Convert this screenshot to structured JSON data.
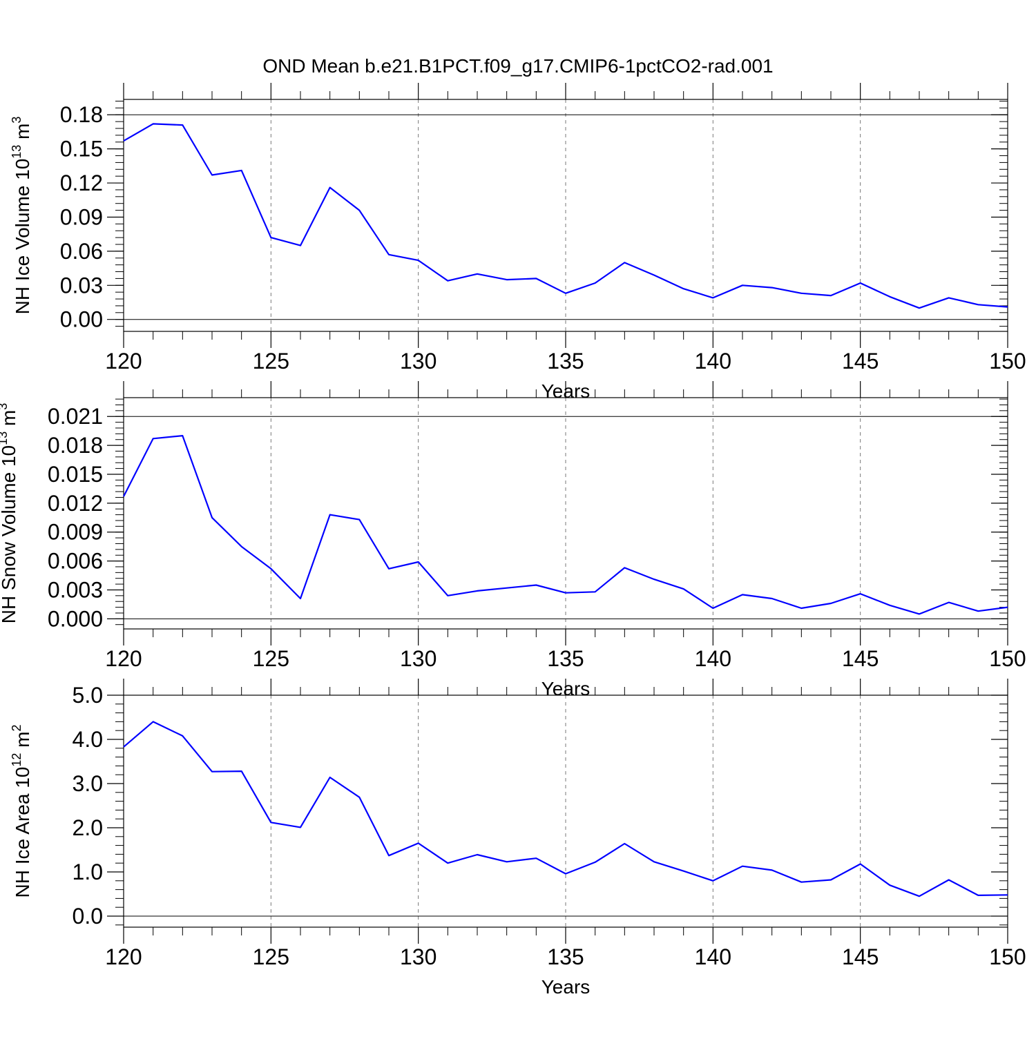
{
  "figure": {
    "title": "OND Mean b.e21.B1PCT.f09_g17.CMIP6-1pctCO2-rad.001",
    "line_color": "#0000ff"
  },
  "chart_data": [
    {
      "type": "line",
      "id": "ice-volume",
      "ylabel": "NH Ice Volume 10",
      "ylabel_exp": "13",
      "ylabel_unit": " m",
      "ylabel_unit_exp": "3",
      "xlabel": "Years",
      "xlim": [
        120,
        150
      ],
      "ylim": [
        -0.0105,
        0.1935
      ],
      "x_ticks": [
        120,
        125,
        130,
        135,
        140,
        145,
        150
      ],
      "x_tick_labels": [
        "120",
        "125",
        "130",
        "135",
        "140",
        "145",
        "150"
      ],
      "y_ticks": [
        0,
        0.03,
        0.06,
        0.09,
        0.12,
        0.15,
        0.18
      ],
      "y_tick_labels": [
        "0.00",
        "0.03",
        "0.06",
        "0.09",
        "0.12",
        "0.15",
        "0.18"
      ],
      "y_minor_step": 0.006,
      "x": [
        120,
        121,
        122,
        123,
        124,
        125,
        126,
        127,
        128,
        129,
        130,
        131,
        132,
        133,
        134,
        135,
        136,
        137,
        138,
        139,
        140,
        141,
        142,
        143,
        144,
        145,
        146,
        147,
        148,
        149,
        150
      ],
      "values": [
        0.157,
        0.172,
        0.171,
        0.127,
        0.131,
        0.072,
        0.065,
        0.116,
        0.096,
        0.057,
        0.052,
        0.034,
        0.04,
        0.035,
        0.036,
        0.023,
        0.032,
        0.05,
        0.039,
        0.027,
        0.019,
        0.03,
        0.028,
        0.023,
        0.021,
        0.032,
        0.02,
        0.01,
        0.019,
        0.013,
        0.011
      ]
    },
    {
      "type": "line",
      "id": "snow-volume",
      "ylabel": "NH Snow Volume 10",
      "ylabel_exp": "13",
      "ylabel_unit": " m",
      "ylabel_unit_exp": "3",
      "xlabel": "Years",
      "xlim": [
        120,
        150
      ],
      "ylim": [
        -0.00105,
        0.02295
      ],
      "x_ticks": [
        120,
        125,
        130,
        135,
        140,
        145,
        150
      ],
      "x_tick_labels": [
        "120",
        "125",
        "130",
        "135",
        "140",
        "145",
        "150"
      ],
      "y_ticks": [
        0,
        0.003,
        0.006,
        0.009,
        0.012,
        0.015,
        0.018,
        0.021
      ],
      "y_tick_labels": [
        "0.000",
        "0.003",
        "0.006",
        "0.009",
        "0.012",
        "0.015",
        "0.018",
        "0.021"
      ],
      "y_minor_step": 0.0006,
      "x": [
        120,
        121,
        122,
        123,
        124,
        125,
        126,
        127,
        128,
        129,
        130,
        131,
        132,
        133,
        134,
        135,
        136,
        137,
        138,
        139,
        140,
        141,
        142,
        143,
        144,
        145,
        146,
        147,
        148,
        149,
        150
      ],
      "values": [
        0.0127,
        0.0187,
        0.019,
        0.0105,
        0.0075,
        0.0052,
        0.0021,
        0.0108,
        0.0103,
        0.0052,
        0.0059,
        0.0024,
        0.0029,
        0.0032,
        0.0035,
        0.0027,
        0.0028,
        0.0053,
        0.0041,
        0.0031,
        0.0011,
        0.0025,
        0.0021,
        0.0011,
        0.0016,
        0.0026,
        0.0014,
        0.0005,
        0.0017,
        0.0008,
        0.0012
      ]
    },
    {
      "type": "line",
      "id": "ice-area",
      "ylabel": "NH Ice Area 10",
      "ylabel_exp": "12",
      "ylabel_unit": " m",
      "ylabel_unit_exp": "2",
      "xlabel": "Years",
      "xlim": [
        120,
        150
      ],
      "ylim": [
        -0.25,
        5.0
      ],
      "x_ticks": [
        120,
        125,
        130,
        135,
        140,
        145,
        150
      ],
      "x_tick_labels": [
        "120",
        "125",
        "130",
        "135",
        "140",
        "145",
        "150"
      ],
      "y_ticks": [
        0,
        1,
        2,
        3,
        4,
        5
      ],
      "y_tick_labels": [
        "0.0",
        "1.0",
        "2.0",
        "3.0",
        "4.0",
        "5.0"
      ],
      "y_minor_step": 0.2,
      "x": [
        120,
        121,
        122,
        123,
        124,
        125,
        126,
        127,
        128,
        129,
        130,
        131,
        132,
        133,
        134,
        135,
        136,
        137,
        138,
        139,
        140,
        141,
        142,
        143,
        144,
        145,
        146,
        147,
        148,
        149,
        150
      ],
      "values": [
        3.83,
        4.4,
        4.08,
        3.27,
        3.28,
        2.12,
        2.01,
        3.14,
        2.69,
        1.37,
        1.65,
        1.2,
        1.39,
        1.23,
        1.31,
        0.96,
        1.22,
        1.64,
        1.23,
        1.02,
        0.8,
        1.13,
        1.04,
        0.77,
        0.82,
        1.18,
        0.7,
        0.45,
        0.82,
        0.47,
        0.48
      ]
    }
  ]
}
